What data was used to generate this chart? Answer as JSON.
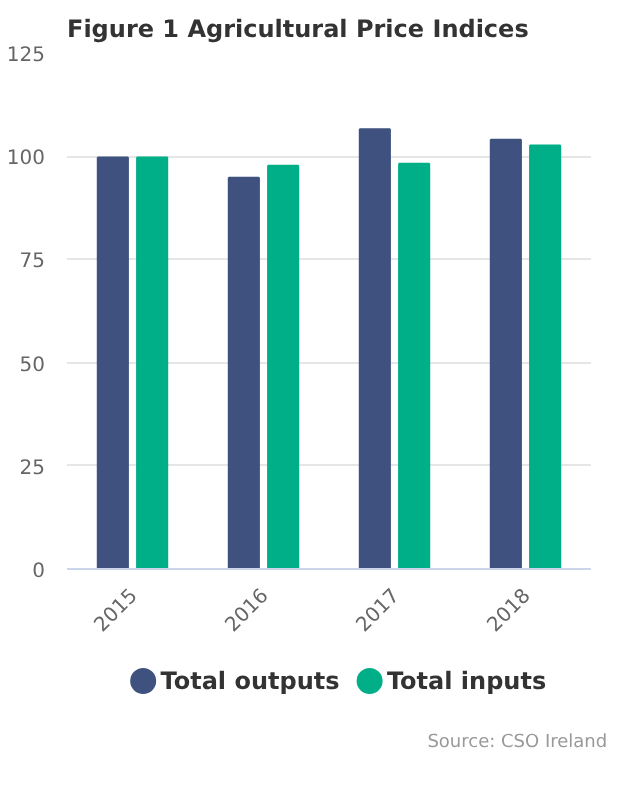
{
  "chart_data": {
    "type": "bar",
    "title": "Figure 1 Agricultural Price Indices",
    "categories": [
      "2015",
      "2016",
      "2017",
      "2018"
    ],
    "series": [
      {
        "name": "Total outputs",
        "color": "#3f527f",
        "values": [
          99.7,
          94.8,
          106.5,
          104.0
        ]
      },
      {
        "name": "Total inputs",
        "color": "#00ae87",
        "values": [
          99.7,
          97.7,
          98.2,
          102.6
        ]
      }
    ],
    "ylim": [
      0,
      125
    ],
    "yticks": [
      0,
      25,
      50,
      75,
      100,
      125
    ],
    "grid": "y",
    "legend": "bottom",
    "annotations": [
      "Source: CSO Ireland"
    ]
  }
}
